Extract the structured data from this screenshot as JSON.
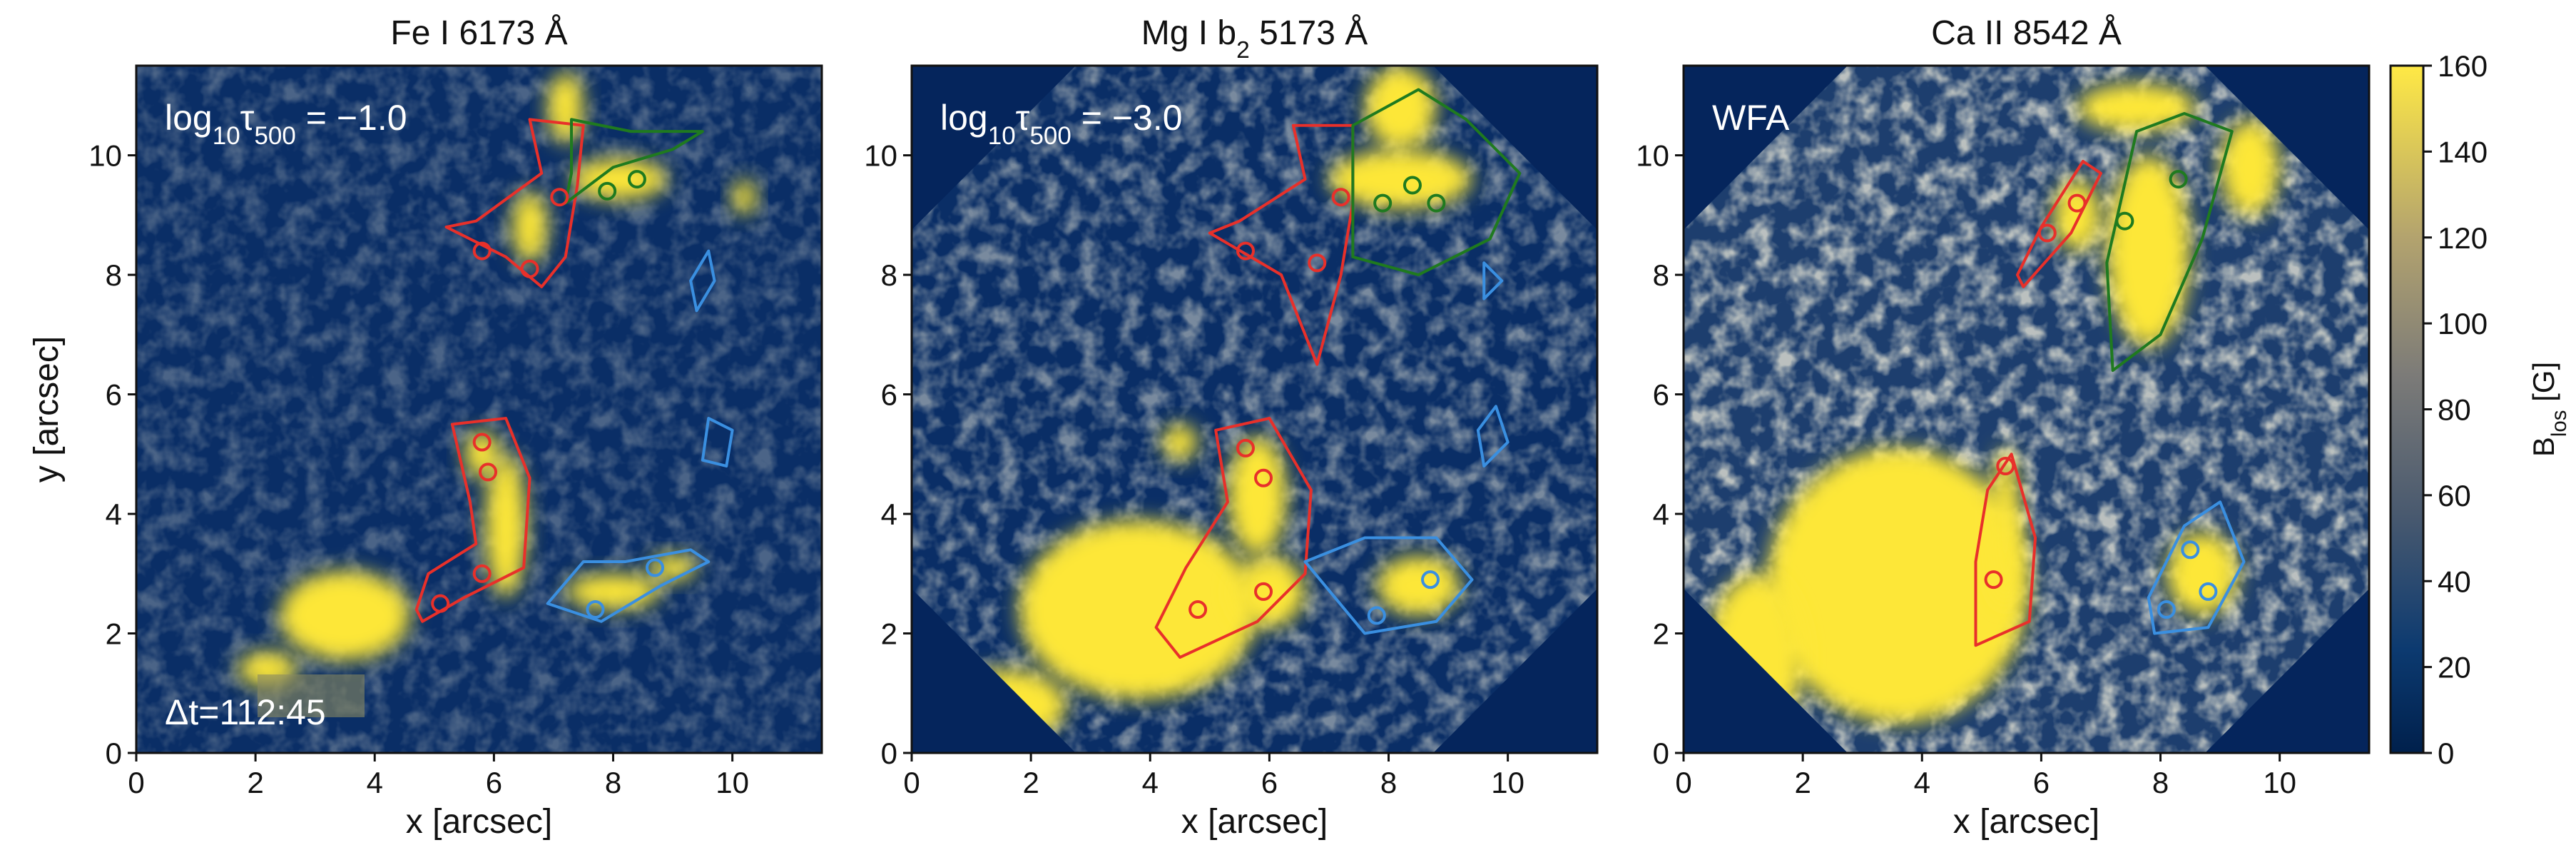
{
  "chart_data": [
    {
      "type": "heatmap",
      "title": [
        {
          "text": "Fe I 6173 Å"
        }
      ],
      "annotation": [
        {
          "text": "log"
        },
        {
          "text": "10",
          "sub": true
        },
        {
          "text": "τ"
        },
        {
          "text": "500",
          "sub": true
        },
        {
          "text": " = −1.0"
        }
      ],
      "time_label": "Δt=112:45",
      "xlabel": "x [arcsec]",
      "ylabel": "y [arcsec]",
      "xlim": [
        0,
        11.5
      ],
      "ylim": [
        0,
        11.5
      ],
      "xticks": [
        0,
        2,
        4,
        6,
        8,
        10
      ],
      "yticks": [
        0,
        2,
        4,
        6,
        8,
        10
      ]
    },
    {
      "type": "heatmap",
      "title": [
        {
          "text": "Mg I b"
        },
        {
          "text": "2",
          "sub": true
        },
        {
          "text": " 5173 Å"
        }
      ],
      "annotation": [
        {
          "text": "log"
        },
        {
          "text": "10",
          "sub": true
        },
        {
          "text": "τ"
        },
        {
          "text": "500",
          "sub": true
        },
        {
          "text": " = −3.0"
        }
      ],
      "xlabel": "x [arcsec]",
      "xlim": [
        0,
        11.5
      ],
      "ylim": [
        0,
        11.5
      ],
      "xticks": [
        0,
        2,
        4,
        6,
        8,
        10
      ],
      "yticks": [
        0,
        2,
        4,
        6,
        8,
        10
      ]
    },
    {
      "type": "heatmap",
      "title": [
        {
          "text": "Ca II 8542 Å"
        }
      ],
      "annotation": [
        {
          "text": "WFA"
        }
      ],
      "xlabel": "x [arcsec]",
      "xlim": [
        0,
        11.5
      ],
      "ylim": [
        0,
        11.5
      ],
      "xticks": [
        0,
        2,
        4,
        6,
        8,
        10
      ],
      "yticks": [
        0,
        2,
        4,
        6,
        8,
        10
      ],
      "colorbar": {
        "label": [
          {
            "text": "B"
          },
          {
            "text": "los",
            "sub": true
          },
          {
            "text": " [G]"
          }
        ],
        "colormap": "cividis",
        "clim": [
          0,
          160
        ],
        "ticks": [
          0,
          20,
          40,
          60,
          80,
          100,
          120,
          140,
          160
        ]
      }
    }
  ]
}
